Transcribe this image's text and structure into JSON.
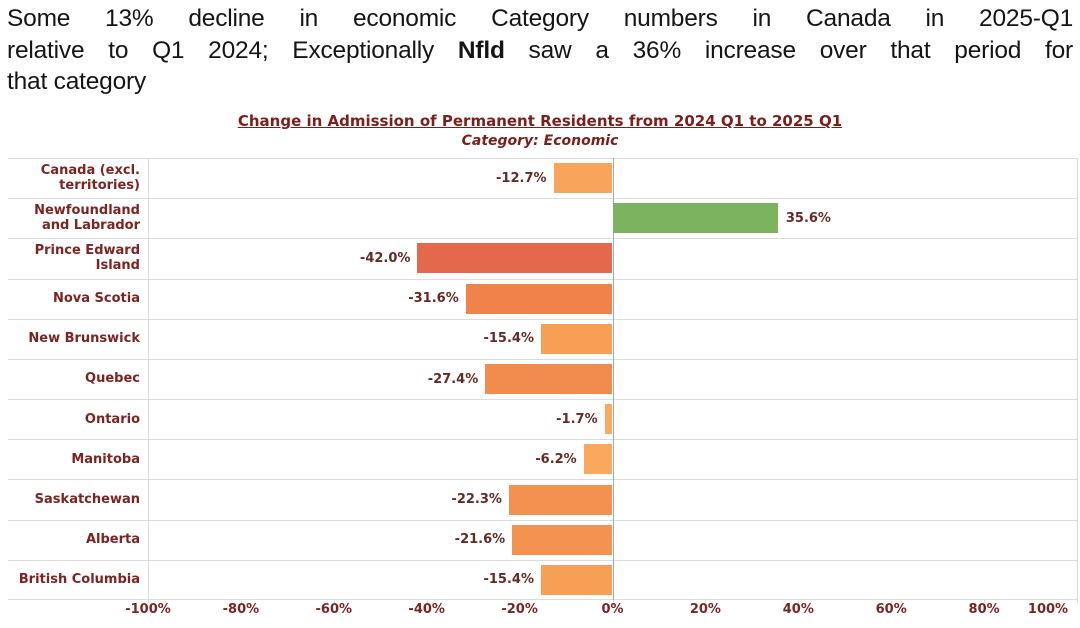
{
  "headline": {
    "line1": "Some 13% decline in economic Category numbers in Canada in 2025-Q1",
    "line2_pre": "relative to Q1 2024; Exceptionally ",
    "line2_bold": "Nfld",
    "line2_post": " saw a 36% increase over that period for",
    "line3": "that category"
  },
  "chart_data": {
    "type": "bar",
    "orientation": "horizontal",
    "title": "Change in Admission of Permanent Residents from 2024 Q1 to 2025 Q1",
    "subtitle": "Category: Economic",
    "categories": [
      "Canada (excl. territories)",
      "Newfoundland and Labrador",
      "Prince Edward Island",
      "Nova Scotia",
      "New Brunswick",
      "Quebec",
      "Ontario",
      "Manitoba",
      "Saskatchewan",
      "Alberta",
      "British Columbia"
    ],
    "values": [
      -12.7,
      35.6,
      -42.0,
      -31.6,
      -15.4,
      -27.4,
      -1.7,
      -6.2,
      -22.3,
      -21.6,
      -15.4
    ],
    "value_labels": [
      "-12.7%",
      "35.6%",
      "-42.0%",
      "-31.6%",
      "-15.4%",
      "-27.4%",
      "-1.7%",
      "-6.2%",
      "-22.3%",
      "-21.6%",
      "-15.4%"
    ],
    "bar_colors": [
      "#F8A45A",
      "#7CB35E",
      "#E4694C",
      "#F0834A",
      "#F89F56",
      "#F28B4E",
      "#F9AA5E",
      "#F9A85D",
      "#F4914F",
      "#F49250",
      "#F89F56"
    ],
    "xlim": [
      -100,
      100
    ],
    "x_ticks": [
      -100,
      -80,
      -60,
      -40,
      -20,
      0,
      20,
      40,
      60,
      80,
      100
    ],
    "x_tick_labels": [
      "-100%",
      "-80%",
      "-60%",
      "-40%",
      "-20%",
      "0%",
      "20%",
      "40%",
      "60%",
      "80%",
      "100%"
    ],
    "grid": "horizontal row separators only",
    "legend": "none",
    "colors": {
      "title": "#7C1F1A",
      "category_labels": "#7B2421",
      "value_labels": "#652A23",
      "gridlines": "#DCDCDC",
      "zero_line": "#A8A8A8",
      "background": "#FFFFFF",
      "headline_text": "#151515"
    }
  }
}
